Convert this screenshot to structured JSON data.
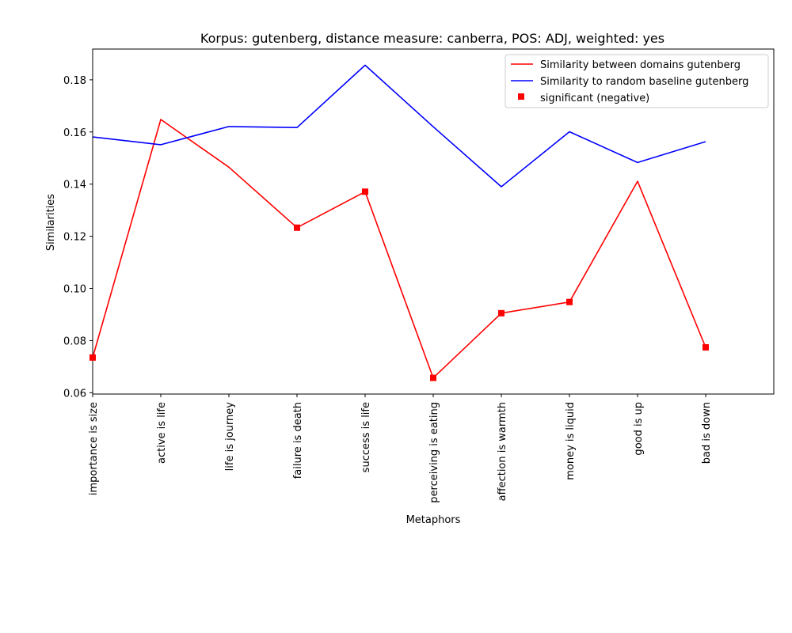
{
  "chart_data": {
    "type": "line",
    "title": "Korpus: gutenberg, distance measure: canberra, POS: ADJ, weighted: yes",
    "xlabel": "Metaphors",
    "ylabel": "Similarities",
    "categories": [
      "importance is size",
      "active is life",
      "life is journey",
      "failure is death",
      "success is life",
      "perceiving is eating",
      "affection is warmth",
      "money is liquid",
      "good is up",
      "bad is down"
    ],
    "ylim": [
      0.0595,
      0.1918
    ],
    "yticks": [
      0.06,
      0.08,
      0.1,
      0.12,
      0.14,
      0.16,
      0.18
    ],
    "ytick_labels": [
      "0.06",
      "0.08",
      "0.10",
      "0.12",
      "0.14",
      "0.16",
      "0.18"
    ],
    "grid": false,
    "legend_position": "top-right",
    "series": [
      {
        "name": "Similarity between domains gutenberg",
        "color": "#ff0000",
        "values": [
          0.0735,
          0.1648,
          0.1465,
          0.1233,
          0.1371,
          0.0657,
          0.0905,
          0.0948,
          0.1411,
          0.0774
        ]
      },
      {
        "name": "Similarity to random baseline gutenberg",
        "color": "#0000ff",
        "values": [
          0.1581,
          0.1551,
          0.1621,
          0.1617,
          0.1856,
          0.162,
          0.139,
          0.1601,
          0.1483,
          0.1563
        ]
      }
    ],
    "markers": {
      "name": "significant (negative)",
      "color": "#ff0000",
      "indices": [
        0,
        3,
        4,
        5,
        6,
        7,
        9
      ]
    }
  }
}
